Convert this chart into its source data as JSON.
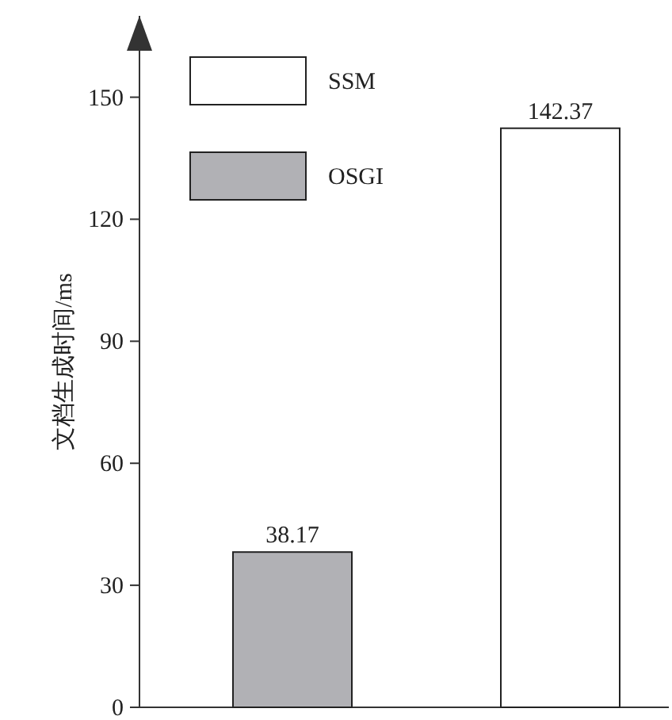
{
  "chart_data": {
    "type": "bar",
    "ylabel": "文档生成时间/ms",
    "categories": [
      null,
      null
    ],
    "series": [
      {
        "name": "SSM",
        "color": "#ffffff",
        "values": [
          null,
          142.37
        ]
      },
      {
        "name": "OSGI",
        "color": "#b1b1b5",
        "values": [
          38.17,
          null
        ]
      }
    ],
    "ylim": [
      0,
      170
    ],
    "yticks": [
      0,
      30,
      60,
      90,
      120,
      150
    ],
    "data_labels": true,
    "legend": "top left"
  }
}
